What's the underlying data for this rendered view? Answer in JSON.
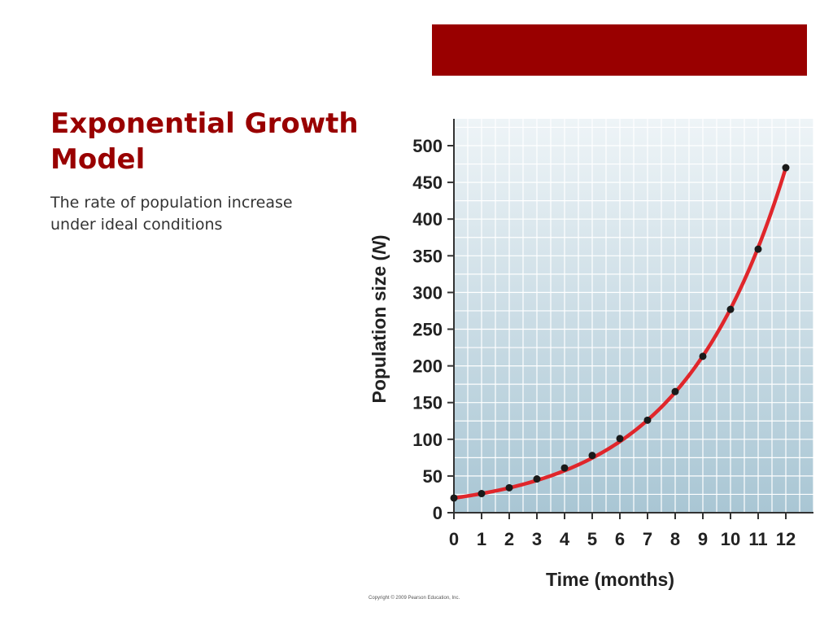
{
  "slide": {
    "title_line1": "Exponential Growth",
    "title_line2": "Model",
    "subtitle_line1": "The rate of population increase",
    "subtitle_line2": "under ideal conditions",
    "copyright": "Copyright © 2009 Pearson Education, Inc.",
    "accent_color": "#990000"
  },
  "chart_data": {
    "type": "scatter",
    "xlabel": "Time (months)",
    "ylabel_prefix": "Population size (",
    "ylabel_var": "N",
    "ylabel_suffix": ")",
    "xlim": [
      0,
      12
    ],
    "ylim": [
      0,
      500
    ],
    "xticks": [
      0,
      1,
      2,
      3,
      4,
      5,
      6,
      7,
      8,
      9,
      10,
      11,
      12
    ],
    "yticks": [
      0,
      50,
      100,
      150,
      200,
      250,
      300,
      350,
      400,
      450,
      500
    ],
    "grid": true,
    "series": [
      {
        "x": [
          0,
          1,
          2,
          3,
          4,
          5,
          6,
          7,
          8,
          9,
          10,
          11,
          12
        ],
        "values": [
          20,
          26,
          34,
          46,
          61,
          78,
          101,
          126,
          165,
          213,
          277,
          359,
          470
        ],
        "point_color": "#1a1a1a",
        "curve_color": "#e0262b",
        "fit": "exponential"
      }
    ],
    "background_top": "#eef4f7",
    "background_bottom": "#a9c6d4"
  }
}
